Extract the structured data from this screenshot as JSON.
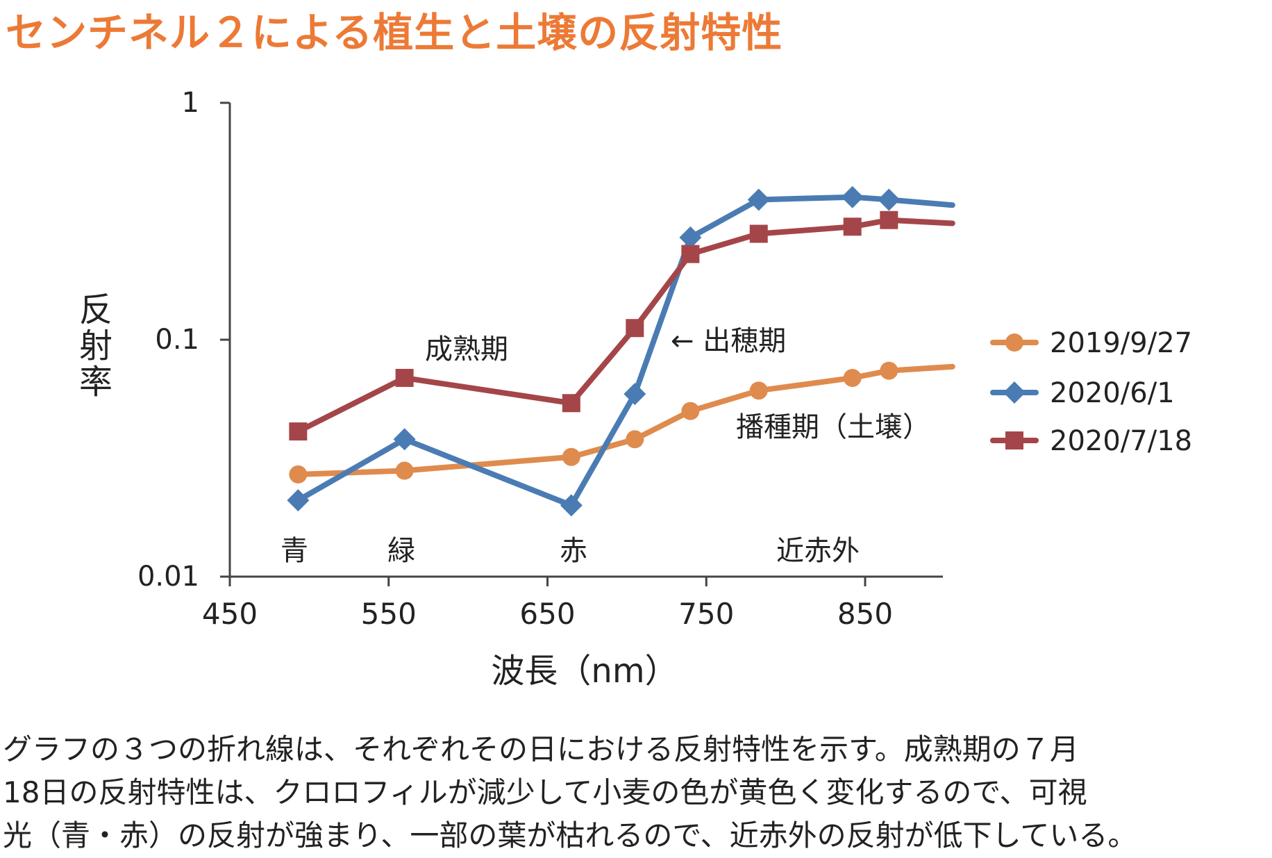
{
  "title": "センチネル２による植生と土壌の反射特性",
  "chart_data": {
    "type": "line",
    "xlabel": "波長（nm）",
    "ylabel": "反射率",
    "xlim": [
      450,
      905
    ],
    "ylim": [
      0.01,
      1
    ],
    "y_scale": "log",
    "x_ticks": [
      "450",
      "550",
      "650",
      "750",
      "850"
    ],
    "y_ticks": [
      "1",
      "0.1",
      "0.01"
    ],
    "legend_position": "right",
    "series": [
      {
        "name": "2019/9/27",
        "color": "#df8b4e",
        "marker": "circle",
        "x": [
          493,
          560,
          665,
          705,
          740,
          783,
          842,
          865,
          905
        ],
        "y": [
          0.027,
          0.028,
          0.032,
          0.038,
          0.05,
          0.061,
          0.069,
          0.074,
          0.077
        ]
      },
      {
        "name": "2020/6/1",
        "color": "#4a7cb3",
        "marker": "diamond",
        "x": [
          493,
          560,
          665,
          705,
          740,
          783,
          842,
          865,
          905
        ],
        "y": [
          0.021,
          0.038,
          0.02,
          0.059,
          0.27,
          0.39,
          0.4,
          0.39,
          0.37
        ]
      },
      {
        "name": "2020/7/18",
        "color": "#a44649",
        "marker": "square",
        "x": [
          493,
          560,
          665,
          705,
          740,
          783,
          842,
          865,
          905
        ],
        "y": [
          0.041,
          0.069,
          0.054,
          0.112,
          0.23,
          0.28,
          0.3,
          0.32,
          0.31
        ]
      }
    ],
    "annotations": [
      {
        "text": "成熟期"
      },
      {
        "text": "← 出穂期"
      },
      {
        "text": "播種期（土壌）"
      }
    ],
    "band_labels": [
      "青",
      "緑",
      "赤",
      "近赤外"
    ]
  },
  "caption": [
    "グラフの３つの折れ線は、それぞれその日における反射特性を示す。成熟期の７月",
    "18日の反射特性は、クロロフィルが減少して小麦の色が黄色く変化するので、可視",
    "光（青・赤）の反射が強まり、一部の葉が枯れるので、近赤外の反射が低下している。"
  ]
}
